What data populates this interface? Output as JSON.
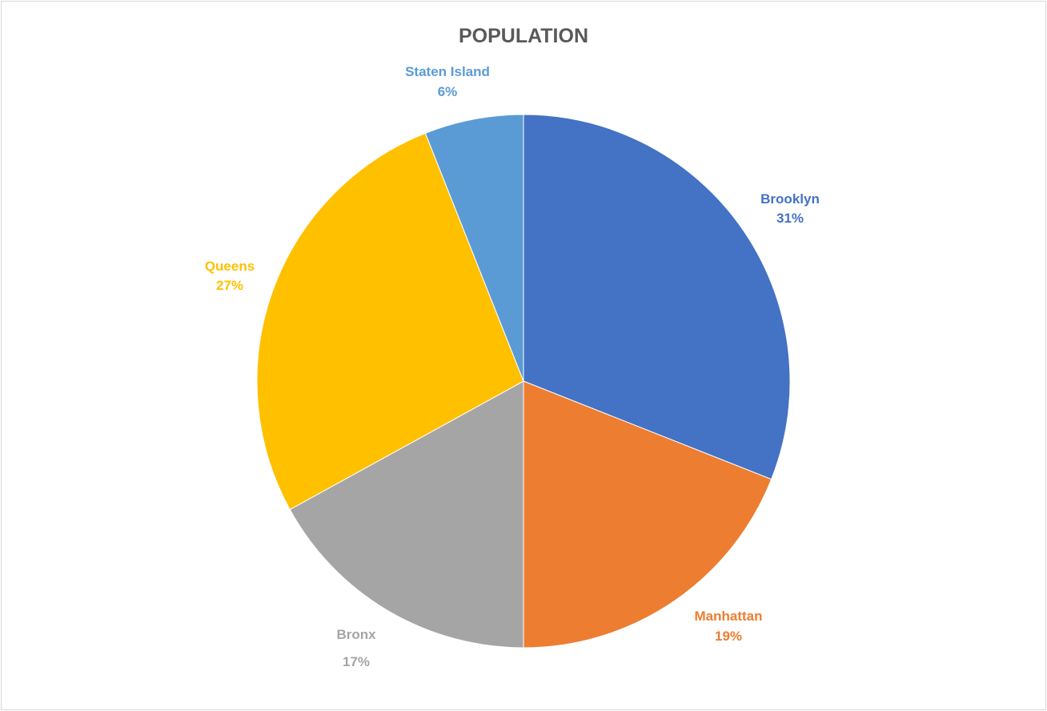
{
  "chart_data": {
    "type": "pie",
    "title": "POPULATION",
    "slices": [
      {
        "label": "Brooklyn",
        "value": 31,
        "percent_label": "31%",
        "color": "#4472C4"
      },
      {
        "label": "Manhattan",
        "value": 19,
        "percent_label": "19%",
        "color": "#ED7D31"
      },
      {
        "label": "Bronx",
        "value": 17,
        "percent_label": "17%",
        "color": "#A5A5A5"
      },
      {
        "label": "Queens",
        "value": 27,
        "percent_label": "27%",
        "color": "#FFC000"
      },
      {
        "label": "Staten Island",
        "value": 6,
        "percent_label": "6%",
        "color": "#5B9BD5"
      }
    ],
    "legend": "none"
  }
}
